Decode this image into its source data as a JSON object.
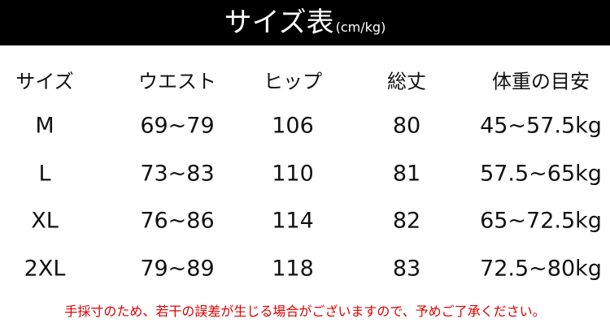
{
  "header": {
    "title": "サイズ表",
    "unit": "(cm/kg)"
  },
  "table": {
    "columns": [
      "サイズ",
      "ウエスト",
      "ヒップ",
      "総丈",
      "体重の目安"
    ],
    "rows": [
      [
        "M",
        "69~79",
        "106",
        "80",
        "45~57.5kg"
      ],
      [
        "L",
        "73~83",
        "110",
        "81",
        "57.5~65kg"
      ],
      [
        "XL",
        "76~86",
        "114",
        "82",
        "65~72.5kg"
      ],
      [
        "2XL",
        "79~89",
        "118",
        "83",
        "72.5~80kg"
      ]
    ]
  },
  "note": "手採寸のため、若干の誤差が生じる場合がございますので、予めご了承ください。"
}
